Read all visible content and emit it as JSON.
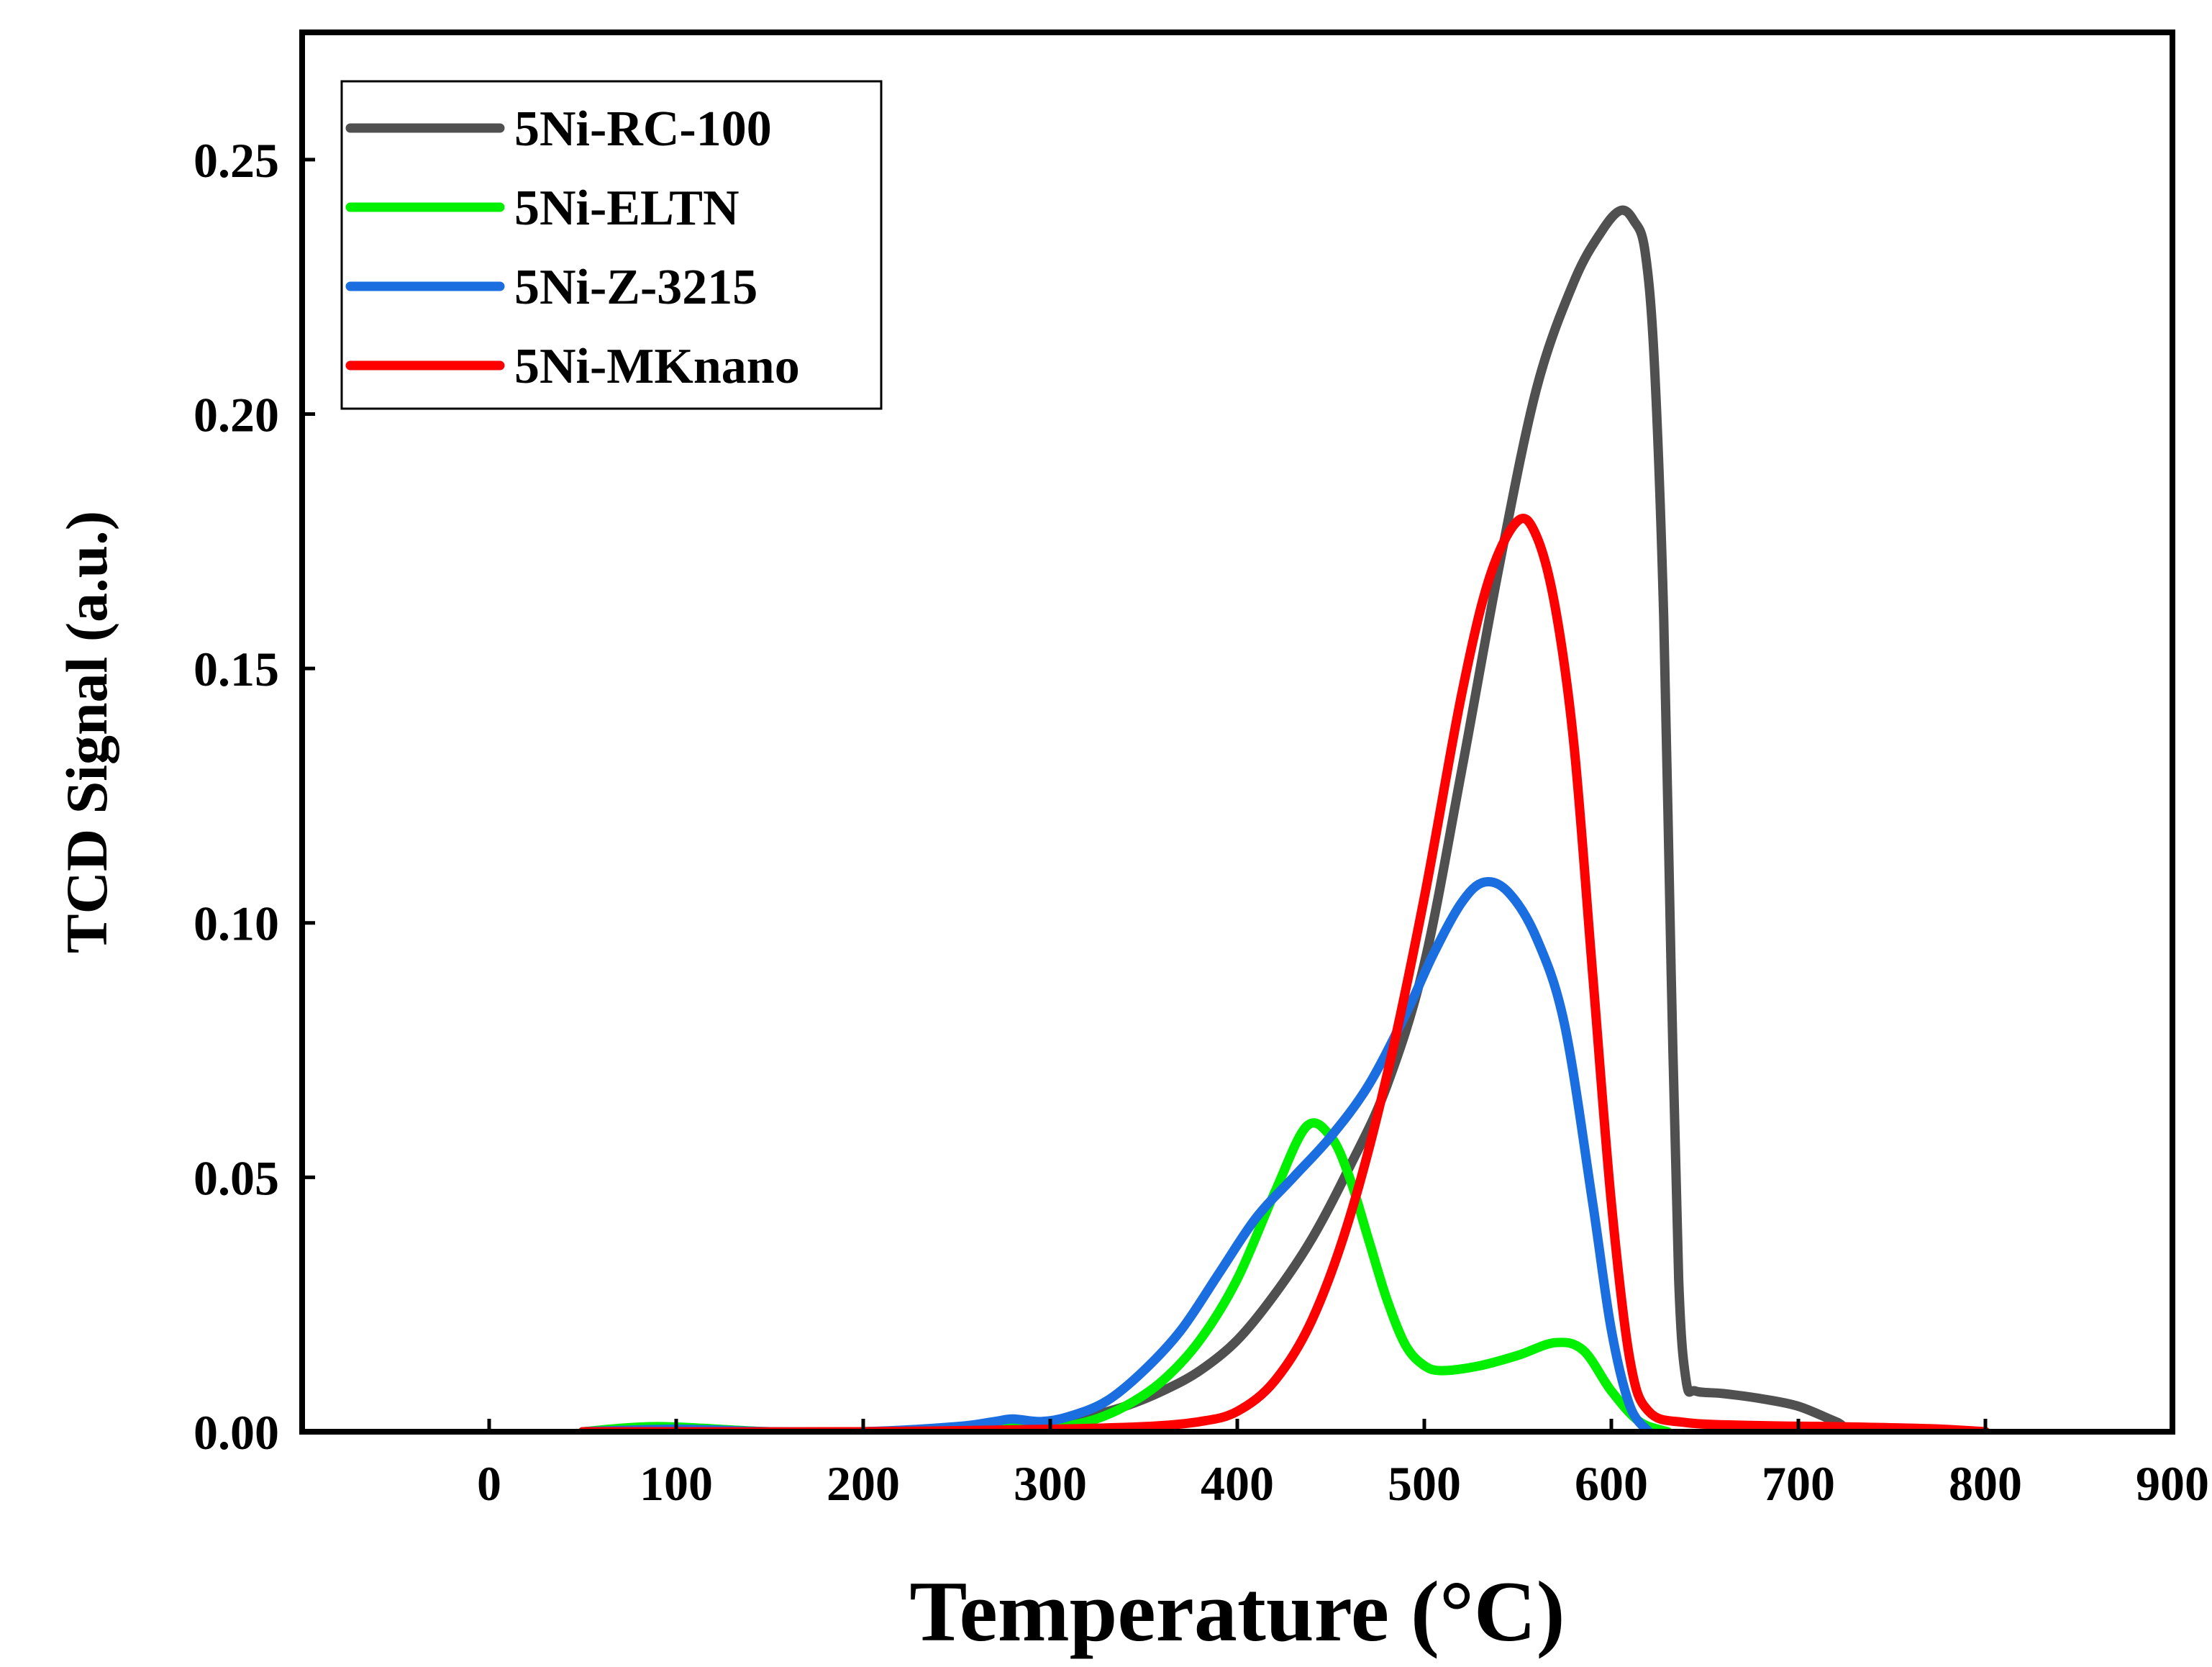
{
  "chart_data": {
    "type": "line",
    "title": "",
    "xlabel": "Temperature (°C)",
    "ylabel": "TCD Signal (a.u.)",
    "xlim": [
      -100,
      900
    ],
    "ylim": [
      0,
      0.275
    ],
    "xticks": [
      0,
      100,
      200,
      300,
      400,
      500,
      600,
      700,
      800,
      900
    ],
    "xtick_labels": [
      "0",
      "100",
      "200",
      "300",
      "400",
      "500",
      "600",
      "700",
      "800",
      "900"
    ],
    "yticks": [
      0,
      0.05,
      0.1,
      0.15,
      0.2,
      0.25
    ],
    "ytick_labels": [
      "0.00",
      "0.05",
      "0.10",
      "0.15",
      "0.20",
      "0.25"
    ],
    "grid": false,
    "legend_position": "top-left",
    "series": [
      {
        "name": "5Ni-RC-100",
        "color": "#505050",
        "x": [
          50,
          100,
          200,
          250,
          280,
          300,
          320,
          340,
          360,
          380,
          400,
          420,
          440,
          460,
          480,
          500,
          520,
          540,
          560,
          580,
          595,
          605,
          612,
          618,
          623,
          628,
          632,
          636,
          640,
          645,
          660,
          680,
          700,
          720,
          735,
          800
        ],
        "y": [
          0,
          0,
          0,
          0.0005,
          0.001,
          0.0015,
          0.003,
          0.005,
          0.008,
          0.012,
          0.018,
          0.027,
          0.038,
          0.052,
          0.068,
          0.092,
          0.13,
          0.17,
          0.205,
          0.226,
          0.236,
          0.24,
          0.238,
          0.232,
          0.21,
          0.16,
          0.09,
          0.03,
          0.01,
          0.008,
          0.0075,
          0.0065,
          0.005,
          0.002,
          0,
          0
        ]
      },
      {
        "name": "5Ni-ELTN",
        "color": "#00f000",
        "x": [
          50,
          90,
          150,
          200,
          250,
          300,
          320,
          340,
          360,
          380,
          400,
          420,
          437,
          450,
          460,
          470,
          480,
          490,
          500,
          510,
          530,
          550,
          570,
          585,
          600,
          615,
          630
        ],
        "y": [
          0,
          0.001,
          0,
          0,
          0.0005,
          0.001,
          0.002,
          0.005,
          0.01,
          0.018,
          0.03,
          0.047,
          0.06,
          0.058,
          0.05,
          0.038,
          0.026,
          0.017,
          0.013,
          0.012,
          0.013,
          0.015,
          0.0175,
          0.016,
          0.008,
          0.002,
          0
        ]
      },
      {
        "name": "5Ni-Z-3215",
        "color": "#1a6ee0",
        "x": [
          50,
          100,
          150,
          200,
          250,
          270,
          280,
          295,
          310,
          330,
          350,
          370,
          390,
          410,
          430,
          450,
          470,
          490,
          505,
          520,
          532,
          545,
          560,
          575,
          590,
          600,
          610,
          620
        ],
        "y": [
          0,
          0.0005,
          0,
          0,
          0.001,
          0.002,
          0.0025,
          0.002,
          0.003,
          0.006,
          0.012,
          0.02,
          0.031,
          0.042,
          0.05,
          0.058,
          0.068,
          0.082,
          0.094,
          0.104,
          0.108,
          0.106,
          0.097,
          0.08,
          0.045,
          0.02,
          0.005,
          0
        ]
      },
      {
        "name": "5Ni-MKnano",
        "color": "#ff0000",
        "x": [
          50,
          100,
          200,
          300,
          350,
          380,
          400,
          420,
          440,
          460,
          480,
          500,
          520,
          535,
          550,
          560,
          570,
          580,
          590,
          600,
          610,
          620,
          640,
          680,
          720,
          770,
          800
        ],
        "y": [
          0,
          0,
          0,
          0.0005,
          0.001,
          0.002,
          0.004,
          0.01,
          0.022,
          0.042,
          0.07,
          0.105,
          0.145,
          0.168,
          0.179,
          0.176,
          0.162,
          0.135,
          0.09,
          0.045,
          0.014,
          0.004,
          0.0018,
          0.0012,
          0.001,
          0.0006,
          0
        ]
      }
    ]
  }
}
